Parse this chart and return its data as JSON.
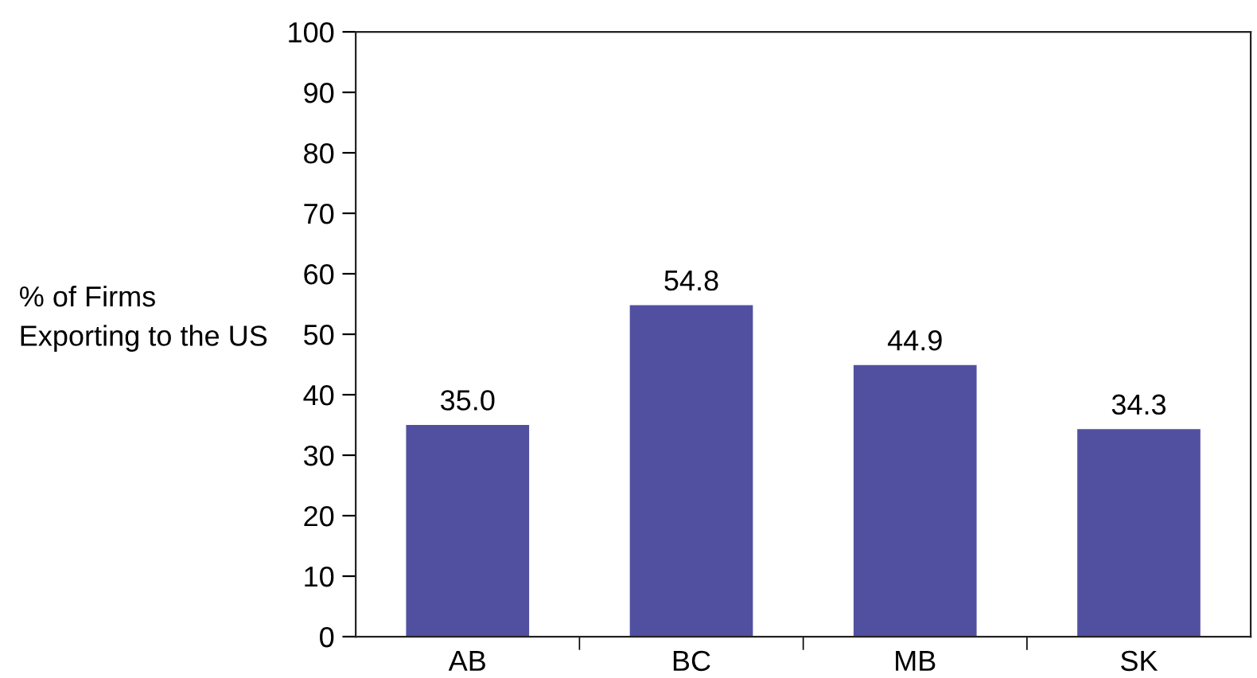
{
  "chart_data": {
    "type": "bar",
    "ylabel": "% of Firms\nExporting to the US",
    "categories": [
      "AB",
      "BC",
      "MB",
      "SK"
    ],
    "values": [
      35.0,
      54.8,
      44.9,
      34.3
    ],
    "value_labels": [
      "35.0",
      "54.8",
      "44.9",
      "34.3"
    ],
    "color": "#5150a0",
    "ylim": [
      0,
      100
    ],
    "yticks": [
      0,
      10,
      20,
      30,
      40,
      50,
      60,
      70,
      80,
      90,
      100
    ],
    "grid": false
  }
}
